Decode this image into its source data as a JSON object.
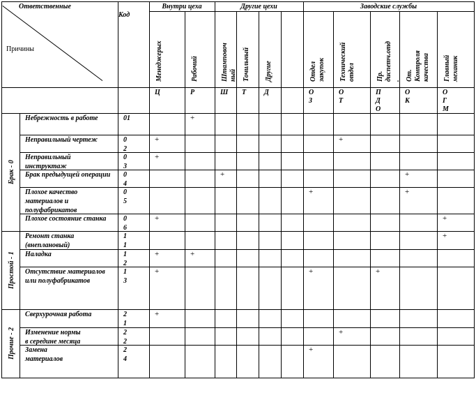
{
  "header": {
    "responsible": "Ответственные",
    "reasons": "Причины",
    "code": "Код",
    "groups": [
      "Внутри цеха",
      "Другие цехи",
      "Заводские службы"
    ],
    "columns": [
      [
        "Менеджерых"
      ],
      [
        "Рабочий"
      ],
      [
        "Штамповоч",
        "ный"
      ],
      [
        "Точильный"
      ],
      [
        "Другие"
      ],
      [
        ""
      ],
      [
        "Отдел",
        "закупок"
      ],
      [
        "Технический",
        "отдел"
      ],
      [
        "Пр.",
        "диспетч.отд",
        "."
      ],
      [
        "От.",
        "Контроля",
        "качества"
      ],
      [
        "Главный",
        "механик"
      ]
    ],
    "abbrevs": [
      [
        "Ц"
      ],
      [
        "Р"
      ],
      [
        "Ш"
      ],
      [
        "Т"
      ],
      [
        "Д"
      ],
      [
        ""
      ],
      [
        "О",
        "З"
      ],
      [
        "О",
        "Т"
      ],
      [
        "П",
        "Д",
        "О"
      ],
      [
        "О",
        "К"
      ],
      [
        "О",
        "Г",
        "М"
      ]
    ]
  },
  "categories": [
    "Брак - 0",
    "Простой - 1",
    "Прочие - 2"
  ],
  "rows": [
    {
      "reason": [
        "Небрежность в работе"
      ],
      "code": [
        "01"
      ],
      "marks": [
        1
      ]
    },
    {
      "reason": [
        "Неправильный чертеж"
      ],
      "code": [
        "0",
        "2"
      ],
      "marks": [
        0,
        7
      ]
    },
    {
      "reason": [
        "Неправильный",
        "инструктаж"
      ],
      "code": [
        "0",
        "3"
      ],
      "marks": [
        0
      ]
    },
    {
      "reason": [
        "Брак предыдущей операции"
      ],
      "code": [
        "0",
        "4"
      ],
      "marks": [
        2,
        9
      ]
    },
    {
      "reason": [
        "Плохое качество",
        "материалов и",
        "полуфабрикатов"
      ],
      "code": [
        "0",
        "5"
      ],
      "marks": [
        6,
        9
      ]
    },
    {
      "reason": [
        "Плохое состояние станка"
      ],
      "code": [
        "0",
        "6"
      ],
      "marks": [
        0,
        10
      ]
    },
    {
      "reason": [
        "Ремонт станка",
        "(внеплановый)"
      ],
      "code": [
        "1",
        "1"
      ],
      "marks": [
        10
      ]
    },
    {
      "reason": [
        "Наладка"
      ],
      "code": [
        "1",
        "2"
      ],
      "marks": [
        0,
        1
      ]
    },
    {
      "reason": [
        "Отсутствие материалов",
        "или полуфабрикатов"
      ],
      "code": [
        "1",
        "3"
      ],
      "marks": [
        0,
        6,
        8
      ]
    },
    {
      "reason": [
        "Сверхурочная работа"
      ],
      "code": [
        "2",
        "1"
      ],
      "marks": [
        0
      ]
    },
    {
      "reason": [
        "Изменение нормы",
        "в середине месяца"
      ],
      "code": [
        "2",
        "2"
      ],
      "marks": [
        7
      ]
    },
    {
      "reason": [
        "Замена",
        "материалов"
      ],
      "code": [
        "2",
        "4"
      ],
      "marks": [
        6
      ]
    }
  ],
  "mark_symbol": "+"
}
